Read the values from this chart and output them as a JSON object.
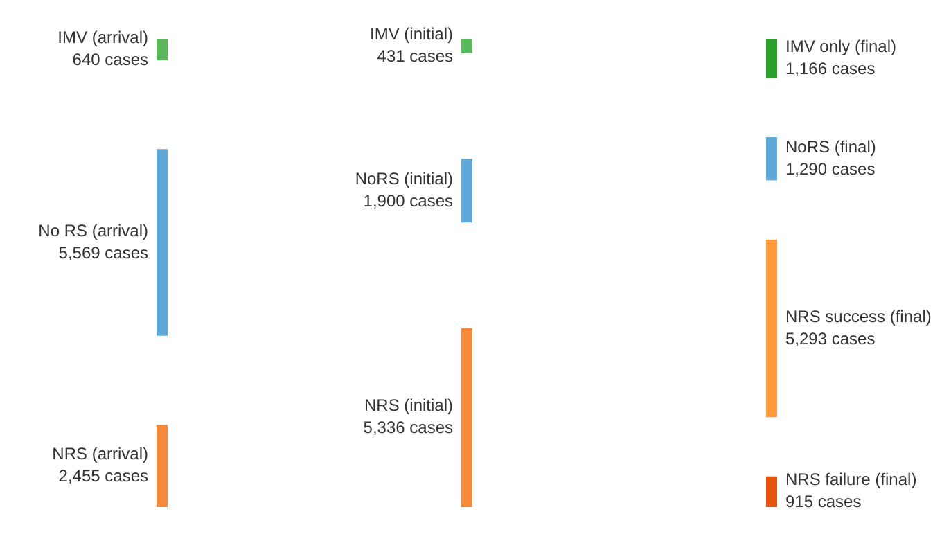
{
  "chart_data": {
    "type": "other",
    "categories": [
      "IMV (arrival)",
      "No RS (arrival)",
      "NRS (arrival)",
      "IMV (initial)",
      "NoRS (initial)",
      "NRS (initial)",
      "IMV only (final)",
      "NoRS (final)",
      "NRS success (final)",
      "NRS failure (final)"
    ],
    "values": [
      640,
      5569,
      2455,
      431,
      1900,
      5336,
      1166,
      1290,
      5293,
      915
    ],
    "value_labels": [
      "640 cases",
      "5,569 cases",
      "2,455 cases",
      "431 cases",
      "1,900 cases",
      "5,336 cases",
      "1,166 cases",
      "1,290 cases",
      "5,293 cases",
      "915 cases"
    ],
    "colors": [
      "#5cb85c",
      "#5fa8d8",
      "#f58a3c",
      "#5cb85c",
      "#5fa8d8",
      "#f58a3c",
      "#2ca02c",
      "#5fa8d8",
      "#fd9a3a",
      "#e6550d"
    ]
  }
}
